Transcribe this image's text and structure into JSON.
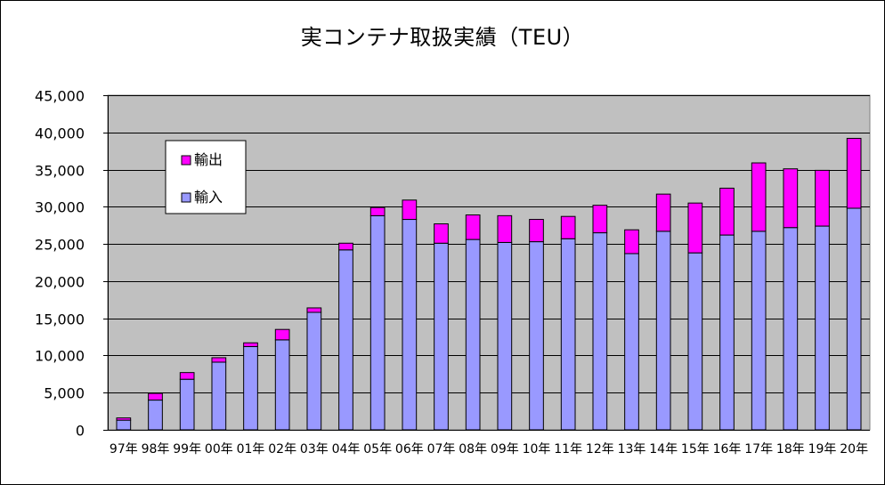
{
  "chart_data": {
    "type": "bar",
    "stacked": true,
    "title": "実コンテナ取扱実績（TEU）",
    "xlabel": "",
    "ylabel": "",
    "ylim": [
      0,
      45000
    ],
    "yticks": [
      "0",
      "5,000",
      "10,000",
      "15,000",
      "20,000",
      "25,000",
      "30,000",
      "35,000",
      "40,000",
      "45,000"
    ],
    "grid": true,
    "legend_position": "top-left",
    "categories": [
      "97年",
      "98年",
      "99年",
      "00年",
      "01年",
      "02年",
      "03年",
      "04年",
      "05年",
      "06年",
      "07年",
      "08年",
      "09年",
      "10年",
      "11年",
      "12年",
      "13年",
      "14年",
      "15年",
      "16年",
      "17年",
      "18年",
      "19年",
      "20年"
    ],
    "series": [
      {
        "name": "輸入",
        "color": "#9999ff",
        "values": [
          1300,
          4000,
          6800,
          9100,
          11200,
          12100,
          15800,
          24200,
          28800,
          28300,
          25100,
          25600,
          25200,
          25300,
          25700,
          26500,
          23700,
          26700,
          23800,
          26200,
          26700,
          27200,
          27400,
          29800
        ]
      },
      {
        "name": "輸出",
        "color": "#ff00ff",
        "values": [
          300,
          900,
          900,
          600,
          500,
          1400,
          600,
          900,
          1100,
          2600,
          2600,
          3300,
          3600,
          3000,
          3000,
          3700,
          3200,
          5000,
          6700,
          6300,
          9200,
          7900,
          7500,
          9400
        ]
      }
    ],
    "colors": {
      "plot_background": "#c0c0c0",
      "gridline": "#000000",
      "bar_outline": "#000000"
    }
  }
}
